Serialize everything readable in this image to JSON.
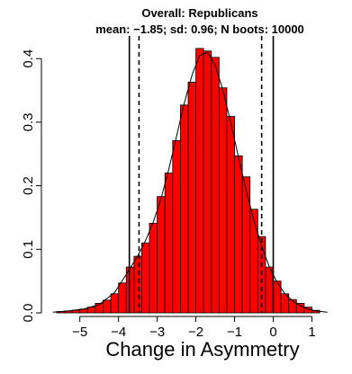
{
  "chart_data": {
    "type": "bar",
    "title": "Overall: Republicans",
    "subtitle": "mean: −1.85; sd: 0.96; N boots: 10000",
    "xlabel": "Change in Asymmetry",
    "ylabel": "",
    "xlim": [
      -5.9,
      1.5
    ],
    "ylim": [
      0,
      0.43
    ],
    "x_ticks": [
      -5,
      -4,
      -3,
      -2,
      -1,
      0,
      1
    ],
    "x_tick_labels": [
      "−5",
      "−4",
      "−3",
      "−2",
      "−1",
      "0",
      "1"
    ],
    "y_ticks": [
      0.0,
      0.1,
      0.2,
      0.3,
      0.4
    ],
    "y_tick_labels": [
      "0.0",
      "0.1",
      "0.2",
      "0.3",
      "0.4"
    ],
    "bin_width": 0.2,
    "bins": [
      {
        "x0": -5.6,
        "density": 0.002
      },
      {
        "x0": -5.4,
        "density": 0.003
      },
      {
        "x0": -5.2,
        "density": 0.004
      },
      {
        "x0": -5.0,
        "density": 0.006
      },
      {
        "x0": -4.8,
        "density": 0.009
      },
      {
        "x0": -4.6,
        "density": 0.015
      },
      {
        "x0": -4.4,
        "density": 0.02
      },
      {
        "x0": -4.2,
        "density": 0.03
      },
      {
        "x0": -4.0,
        "density": 0.047
      },
      {
        "x0": -3.8,
        "density": 0.072
      },
      {
        "x0": -3.6,
        "density": 0.089
      },
      {
        "x0": -3.4,
        "density": 0.11
      },
      {
        "x0": -3.2,
        "density": 0.141
      },
      {
        "x0": -3.0,
        "density": 0.183
      },
      {
        "x0": -2.8,
        "density": 0.22
      },
      {
        "x0": -2.6,
        "density": 0.271
      },
      {
        "x0": -2.4,
        "density": 0.327
      },
      {
        "x0": -2.2,
        "density": 0.363
      },
      {
        "x0": -2.0,
        "density": 0.416
      },
      {
        "x0": -1.8,
        "density": 0.412
      },
      {
        "x0": -1.6,
        "density": 0.402
      },
      {
        "x0": -1.4,
        "density": 0.354
      },
      {
        "x0": -1.2,
        "density": 0.309
      },
      {
        "x0": -1.0,
        "density": 0.247
      },
      {
        "x0": -0.8,
        "density": 0.214
      },
      {
        "x0": -0.6,
        "density": 0.163
      },
      {
        "x0": -0.4,
        "density": 0.12
      },
      {
        "x0": -0.2,
        "density": 0.072
      },
      {
        "x0": 0.0,
        "density": 0.05
      },
      {
        "x0": 0.2,
        "density": 0.03
      },
      {
        "x0": 0.4,
        "density": 0.021
      },
      {
        "x0": 0.6,
        "density": 0.015
      },
      {
        "x0": 0.8,
        "density": 0.009
      },
      {
        "x0": 1.0,
        "density": 0.004
      }
    ],
    "density_curve": {
      "x": [
        -5.7,
        -5.3,
        -4.9,
        -4.5,
        -4.1,
        -3.7,
        -3.5,
        -3.3,
        -3.1,
        -2.9,
        -2.7,
        -2.5,
        -2.3,
        -2.1,
        -1.9,
        -1.7,
        -1.5,
        -1.3,
        -1.1,
        -0.9,
        -0.7,
        -0.5,
        -0.3,
        -0.1,
        0.1,
        0.3,
        0.5,
        0.7,
        0.9,
        1.1,
        1.4
      ],
      "y": [
        0.001,
        0.003,
        0.006,
        0.013,
        0.032,
        0.07,
        0.09,
        0.114,
        0.143,
        0.18,
        0.226,
        0.278,
        0.33,
        0.374,
        0.405,
        0.41,
        0.39,
        0.35,
        0.3,
        0.245,
        0.193,
        0.145,
        0.105,
        0.072,
        0.048,
        0.03,
        0.019,
        0.011,
        0.006,
        0.003,
        0.001
      ]
    },
    "vertical_lines": [
      {
        "x": -3.72,
        "style": "solid"
      },
      {
        "x": -3.47,
        "style": "dashed"
      },
      {
        "x": -0.3,
        "style": "dashed"
      },
      {
        "x": 0.0,
        "style": "solid"
      }
    ],
    "colors": {
      "bar_fill": "#ff0000",
      "bar_stroke": "#000000",
      "line": "#000000"
    }
  }
}
